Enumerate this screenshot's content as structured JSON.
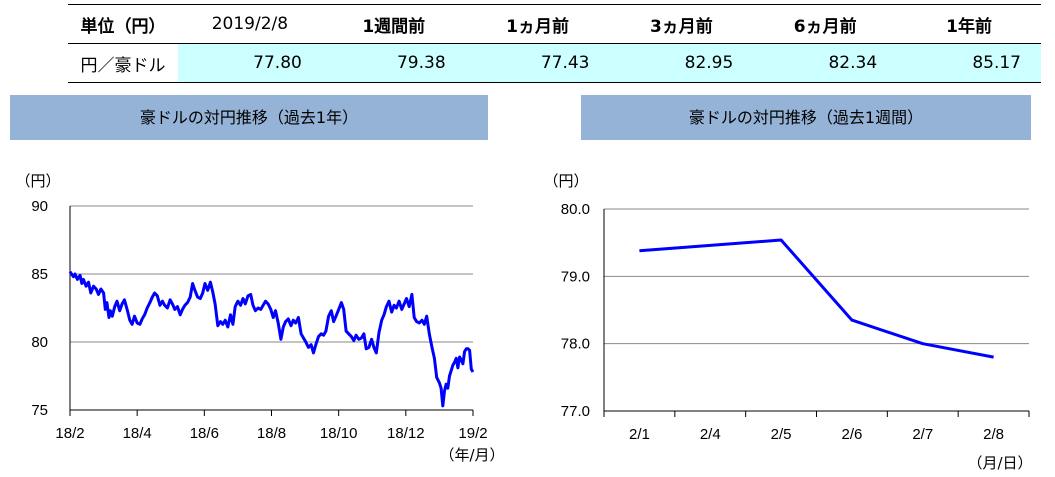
{
  "table": {
    "header": [
      "単位（円）",
      "2019/2/8",
      "1週間前",
      "1ヵ月前",
      "3ヵ月前",
      "6ヵ月前",
      "1年前"
    ],
    "row_label": "円／豪ドル",
    "values": [
      "77.80",
      "79.38",
      "77.43",
      "82.95",
      "82.34",
      "85.17"
    ]
  },
  "chart_data": [
    {
      "type": "line",
      "title": "豪ドルの対円推移（過去1年）",
      "y_unit": "（円）",
      "x_unit": "（年/月）",
      "x_ticks": [
        "18/2",
        "18/4",
        "18/6",
        "18/8",
        "18/10",
        "18/12",
        "19/2"
      ],
      "y_ticks": [
        "75",
        "80",
        "85",
        "90"
      ],
      "ylim": [
        75,
        90
      ],
      "grid": true,
      "color": "#0000ff",
      "series": [
        {
          "x": [
            0.0,
            0.1,
            0.15,
            0.22,
            0.3,
            0.35,
            0.4,
            0.48,
            0.55,
            0.62,
            0.7,
            0.78,
            0.85,
            0.92,
            1.0,
            1.05,
            1.1,
            1.16,
            1.2,
            1.26,
            1.33,
            1.4,
            1.48,
            1.55,
            1.62,
            1.7,
            1.78,
            1.85,
            1.92,
            2.0,
            2.08,
            2.15,
            2.22,
            2.3,
            2.38,
            2.45,
            2.52,
            2.6,
            2.68,
            2.75,
            2.82,
            2.9,
            2.98,
            3.05,
            3.12,
            3.2,
            3.28,
            3.35,
            3.42,
            3.5,
            3.58,
            3.65,
            3.72,
            3.8,
            3.88,
            3.95,
            4.02,
            4.1,
            4.18,
            4.25,
            4.32,
            4.4,
            4.48,
            4.55,
            4.62,
            4.7,
            4.78,
            4.85,
            4.92,
            5.0,
            5.08,
            5.15,
            5.22,
            5.3,
            5.38,
            5.45,
            5.52,
            5.6,
            5.68,
            5.75,
            5.82,
            5.9,
            5.98,
            6.05,
            6.12,
            6.2,
            6.28,
            6.35,
            6.42,
            6.5,
            6.58,
            6.65,
            6.72,
            6.8,
            6.88,
            6.95,
            7.02,
            7.1,
            7.18,
            7.25,
            7.32,
            7.4,
            7.48,
            7.55,
            7.62,
            7.7,
            7.78,
            7.85,
            7.92,
            8.0,
            8.08,
            8.15,
            8.22,
            8.3,
            8.38,
            8.45,
            8.52,
            8.6,
            8.68,
            8.75,
            8.82,
            8.9,
            8.98,
            9.05,
            9.12,
            9.2,
            9.28,
            9.35,
            9.42,
            9.5,
            9.58,
            9.65,
            9.72,
            9.8,
            9.88,
            9.95,
            10.02,
            10.1,
            10.18,
            10.25,
            10.32,
            10.4,
            10.48,
            10.55,
            10.62,
            10.7,
            10.78,
            10.85,
            10.92,
            11.0,
            11.05,
            11.1,
            11.15,
            11.2,
            11.25,
            11.3,
            11.35,
            11.4,
            11.45,
            11.5,
            11.55,
            11.6,
            11.65,
            11.7,
            11.75,
            11.8,
            11.85,
            11.9,
            11.95,
            12.0
          ],
          "y": [
            85.17,
            84.8,
            85.0,
            84.6,
            84.9,
            84.3,
            84.6,
            84.1,
            84.4,
            83.6,
            84.1,
            83.9,
            83.5,
            83.9,
            83.6,
            82.4,
            82.9,
            81.8,
            82.3,
            81.9,
            82.6,
            83.0,
            82.3,
            82.8,
            83.1,
            82.4,
            81.6,
            81.3,
            81.9,
            81.4,
            81.3,
            81.7,
            82.0,
            82.5,
            82.9,
            83.3,
            83.6,
            83.4,
            82.7,
            83.0,
            82.7,
            82.5,
            83.1,
            82.8,
            82.4,
            82.6,
            82.0,
            82.4,
            82.7,
            82.9,
            83.3,
            84.3,
            83.8,
            83.3,
            83.2,
            83.6,
            84.3,
            83.8,
            84.4,
            83.7,
            82.8,
            81.2,
            81.5,
            81.3,
            81.6,
            81.1,
            82.0,
            81.3,
            82.6,
            83.0,
            82.7,
            83.2,
            82.8,
            83.4,
            83.5,
            82.7,
            82.3,
            82.5,
            82.4,
            82.7,
            83.0,
            82.8,
            82.4,
            81.8,
            82.3,
            81.4,
            80.2,
            81.1,
            81.5,
            81.7,
            81.2,
            81.6,
            81.4,
            81.8,
            80.6,
            80.3,
            80.0,
            79.6,
            79.8,
            79.2,
            79.8,
            80.4,
            80.6,
            80.5,
            80.8,
            81.9,
            82.3,
            81.5,
            81.9,
            82.4,
            82.9,
            82.4,
            80.8,
            80.6,
            80.4,
            80.1,
            80.5,
            80.2,
            80.3,
            80.6,
            79.5,
            79.6,
            80.2,
            79.6,
            79.2,
            80.7,
            81.6,
            82.0,
            82.6,
            83.0,
            82.2,
            82.7,
            82.5,
            83.0,
            82.4,
            82.8,
            83.2,
            82.6,
            83.5,
            81.8,
            81.5,
            81.4,
            81.6,
            81.3,
            81.9,
            80.6,
            79.6,
            78.8,
            77.4,
            77.0,
            76.6,
            75.3,
            76.4,
            76.9,
            76.6,
            77.5,
            77.9,
            78.3,
            78.5,
            78.8,
            78.1,
            78.9,
            78.7,
            78.4,
            79.3,
            79.5,
            79.5,
            79.4,
            78.0,
            77.8
          ]
        }
      ]
    },
    {
      "type": "line",
      "title": "豪ドルの対円推移（過去1週間）",
      "y_unit": "（円）",
      "x_unit": "（月/日）",
      "categories": [
        "2/1",
        "2/4",
        "2/5",
        "2/6",
        "2/7",
        "2/8"
      ],
      "y_ticks": [
        "77.0",
        "78.0",
        "79.0",
        "80.0"
      ],
      "ylim": [
        77.0,
        80.0
      ],
      "grid": true,
      "color": "#0000ff",
      "series": [
        {
          "values": [
            79.38,
            79.46,
            79.54,
            78.35,
            78.0,
            77.8
          ]
        }
      ]
    }
  ]
}
